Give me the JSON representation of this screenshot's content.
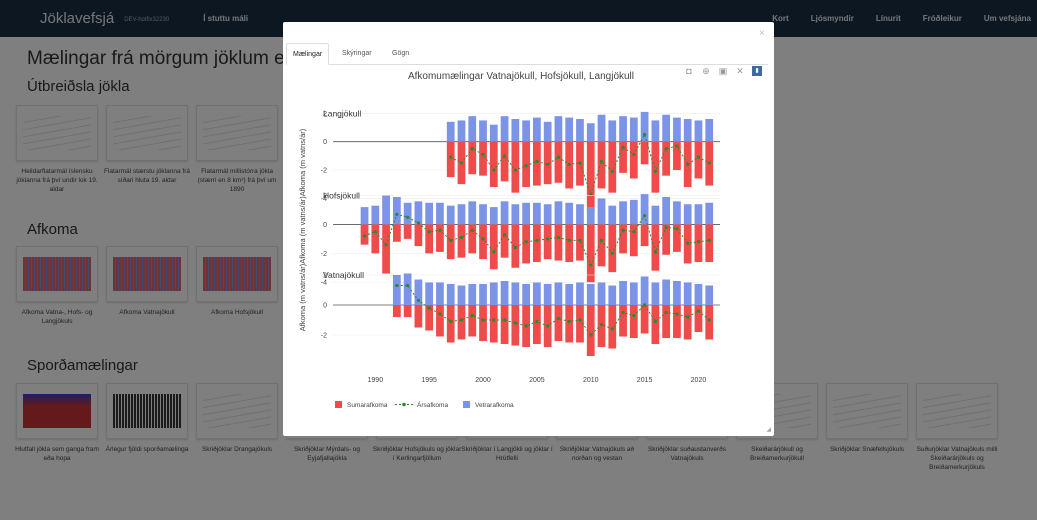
{
  "navbar": {
    "brand": "Jöklavefsjá",
    "dev": "DEV-hotfix32230",
    "left_link": "Í stuttu máli",
    "right_links": [
      "Kort",
      "Ljósmyndir",
      "Línurit",
      "Fróðleikur",
      "Um vefsjána"
    ]
  },
  "page": {
    "title": "Mælingar frá mörgum jöklum eða mör",
    "sections": [
      {
        "heading": "Útbreiðsla jökla",
        "items": [
          {
            "caption": "Heildarflatarmál íslensku jöklanna frá því undir lok 19. aldar",
            "thumb": "line-decline"
          },
          {
            "caption": "Flatarmál stærstu jöklanna frá síðari hluta 19. aldar",
            "thumb": "multi-line"
          },
          {
            "caption": "Flatarmál millistórra jökla (stærri en 8 km²) frá því um 1890",
            "thumb": "multi-line-2"
          }
        ]
      },
      {
        "heading": "Afkoma",
        "items": [
          {
            "caption": "Afkoma Vatna-, Hofs- og Langjökuls",
            "thumb": "bars-3"
          },
          {
            "caption": "Afkoma Vatnajökull",
            "thumb": "bars-1"
          },
          {
            "caption": "Afkoma Hofsjökull",
            "thumb": "bars-1b"
          }
        ]
      },
      {
        "heading": "Sporðamælingar",
        "items": [
          {
            "caption": "Hlutfall jökla sem ganga fram eða hopa",
            "thumb": "area-red-blue"
          },
          {
            "caption": "Árlegur fjöldi sporðamælinga",
            "thumb": "black-bars"
          },
          {
            "caption": "Skriðjöklar Drangajökuls",
            "thumb": "lines"
          },
          {
            "caption": "Skriðjöklar Mýrdals- og Eyjafjallajökla",
            "thumb": "lines"
          },
          {
            "caption": "Skriðjöklar Hofsjökuls og jöklar í Kerlingarfjöllum",
            "thumb": "lines"
          },
          {
            "caption": "Skriðjöklar í Langjökli og jöklar í Hrútfelli",
            "thumb": "lines"
          },
          {
            "caption": "Skriðjöklar Vatnajökuls að norðan og vestan",
            "thumb": "lines"
          },
          {
            "caption": "Skriðjöklar suðaustanverðs Vatnajökuls",
            "thumb": "lines"
          },
          {
            "caption": "Skeiðarárjökull og Breiðamerkurjökull",
            "thumb": "lines"
          },
          {
            "caption": "Skriðjöklar Snæfellsjökuls",
            "thumb": "lines"
          },
          {
            "caption": "Suðurjöklar Vatnajökuls milli Skeiðarárjökuls og Breiðamerkurjökuls",
            "thumb": "lines"
          }
        ]
      }
    ]
  },
  "modal": {
    "close_symbol": "×",
    "tabs": [
      "Mælingar",
      "Skýringar",
      "Gögn"
    ],
    "active_tab": 0,
    "toolbar_icons": [
      "camera-icon",
      "zoom-icon",
      "box-select-icon",
      "reset-axes-icon",
      "plotly-logo-icon"
    ]
  },
  "colors": {
    "summer": "#ef4b4b",
    "winter": "#7b94e8",
    "annual": "#2c8a2c",
    "nav": "#1b2f43"
  },
  "chart_data": {
    "type": "bar",
    "title": "Afkomumælingar Vatnajökull, Hofsjökull, Langjökull",
    "ylabel": "Afkoma (m vatns/ár)Afkoma (m vatns/ár)Afkoma (m vatns/ár)",
    "xlim": [
      1987,
      2022
    ],
    "xticks": [
      1990,
      1995,
      2000,
      2005,
      2010,
      2015,
      2020
    ],
    "legend": {
      "placement": "bottom-left",
      "entries": [
        "Sumarafkoma",
        "Ársafkoma",
        "Vetrarafkoma"
      ]
    },
    "panels": [
      {
        "name": "Langjökull",
        "ylim": [
          -4.4,
          2.8
        ],
        "yticks": [
          2,
          0,
          -2,
          -4
        ],
        "years": [
          1997,
          1998,
          1999,
          2000,
          2001,
          2002,
          2003,
          2004,
          2005,
          2006,
          2007,
          2008,
          2009,
          2010,
          2011,
          2012,
          2013,
          2014,
          2015,
          2016,
          2017,
          2018,
          2019,
          2020,
          2021
        ],
        "winter": [
          1.4,
          1.5,
          1.8,
          1.5,
          1.2,
          1.8,
          1.6,
          1.5,
          1.7,
          1.4,
          1.8,
          1.7,
          1.6,
          1.3,
          1.9,
          1.5,
          1.8,
          1.7,
          2.1,
          1.5,
          1.9,
          1.7,
          1.6,
          1.5,
          1.6
        ],
        "summer": [
          -2.5,
          -3.0,
          -2.3,
          -2.4,
          -3.2,
          -2.8,
          -3.6,
          -3.2,
          -3.1,
          -3.0,
          -2.9,
          -3.3,
          -3.1,
          -5.0,
          -3.3,
          -3.6,
          -2.2,
          -2.6,
          -1.6,
          -3.6,
          -2.4,
          -2.0,
          -3.2,
          -2.6,
          -3.1
        ],
        "annual": [
          -1.1,
          -1.5,
          -0.5,
          -0.9,
          -2.0,
          -1.0,
          -2.0,
          -1.7,
          -1.4,
          -1.6,
          -1.1,
          -1.6,
          -1.5,
          -3.7,
          -1.4,
          -2.1,
          -0.4,
          -0.9,
          0.5,
          -2.1,
          -0.5,
          -0.3,
          -1.6,
          -1.1,
          -1.5
        ]
      },
      {
        "name": "Hofsjökull",
        "ylim": [
          -4.4,
          2.8
        ],
        "yticks": [
          2,
          0,
          -2,
          -4
        ],
        "years": [
          1989,
          1990,
          1991,
          1992,
          1993,
          1994,
          1995,
          1996,
          1997,
          1998,
          1999,
          2000,
          2001,
          2002,
          2003,
          2004,
          2005,
          2006,
          2007,
          2008,
          2009,
          2010,
          2011,
          2012,
          2013,
          2014,
          2015,
          2016,
          2017,
          2018,
          2019,
          2020,
          2021
        ],
        "winter": [
          1.2,
          1.3,
          2.0,
          1.9,
          1.5,
          1.6,
          1.5,
          1.5,
          1.3,
          1.4,
          1.6,
          1.4,
          1.2,
          1.6,
          1.4,
          1.5,
          1.5,
          1.4,
          1.6,
          1.5,
          1.4,
          1.2,
          1.8,
          1.3,
          1.6,
          1.7,
          2.1,
          1.3,
          1.9,
          1.6,
          1.4,
          1.4,
          1.5
        ],
        "summer": [
          -1.4,
          -2.0,
          -3.4,
          -1.2,
          -1.0,
          -1.5,
          -2.0,
          -1.9,
          -2.4,
          -2.3,
          -2.0,
          -2.4,
          -3.1,
          -2.3,
          -3.0,
          -2.7,
          -2.6,
          -2.4,
          -2.5,
          -2.6,
          -2.5,
          -4.0,
          -2.9,
          -3.3,
          -2.0,
          -2.2,
          -1.5,
          -3.2,
          -2.1,
          -1.9,
          -2.7,
          -2.6,
          -2.6
        ],
        "annual": [
          -0.8,
          -0.5,
          -1.4,
          0.7,
          0.5,
          0.1,
          -0.5,
          -0.4,
          -1.1,
          -0.9,
          -0.4,
          -1.0,
          -1.9,
          -0.7,
          -1.6,
          -1.2,
          -1.1,
          -1.0,
          -0.9,
          -1.1,
          -1.1,
          -2.8,
          -1.1,
          -2.0,
          -0.4,
          -0.5,
          0.6,
          -1.9,
          -0.2,
          -0.3,
          -1.3,
          -1.2,
          -1.1
        ]
      },
      {
        "name": "Vatnajökull",
        "ylim": [
          -3.8,
          2.6
        ],
        "yticks": [
          2,
          0,
          -2
        ],
        "years": [
          1992,
          1993,
          1994,
          1995,
          1996,
          1997,
          1998,
          1999,
          2000,
          2001,
          2002,
          2003,
          2004,
          2005,
          2006,
          2007,
          2008,
          2009,
          2010,
          2011,
          2012,
          2013,
          2014,
          2015,
          2016,
          2017,
          2018,
          2019,
          2020,
          2021
        ],
        "winter": [
          2.0,
          2.1,
          1.7,
          1.5,
          1.5,
          1.4,
          1.3,
          1.4,
          1.4,
          1.5,
          1.6,
          1.5,
          1.4,
          1.5,
          1.4,
          1.5,
          1.4,
          1.5,
          1.4,
          1.5,
          1.3,
          1.6,
          1.5,
          1.9,
          1.5,
          1.7,
          1.6,
          1.5,
          1.4,
          1.3
        ],
        "summer": [
          -0.8,
          -0.8,
          -1.5,
          -1.7,
          -2.1,
          -2.5,
          -2.3,
          -2.1,
          -2.4,
          -2.5,
          -2.6,
          -2.7,
          -2.8,
          -2.6,
          -2.8,
          -2.4,
          -2.5,
          -2.5,
          -3.4,
          -2.8,
          -2.9,
          -2.1,
          -2.2,
          -1.9,
          -2.6,
          -2.2,
          -2.2,
          -2.3,
          -1.8,
          -2.3
        ],
        "annual": [
          1.3,
          1.3,
          0.3,
          -0.2,
          -0.6,
          -1.1,
          -1.0,
          -0.7,
          -1.0,
          -1.0,
          -1.0,
          -1.2,
          -1.4,
          -1.1,
          -1.4,
          -0.9,
          -1.1,
          -1.0,
          -2.0,
          -1.3,
          -1.6,
          -0.5,
          -0.7,
          0.0,
          -1.1,
          -0.5,
          -0.6,
          -0.8,
          -0.4,
          -1.0
        ]
      }
    ]
  }
}
